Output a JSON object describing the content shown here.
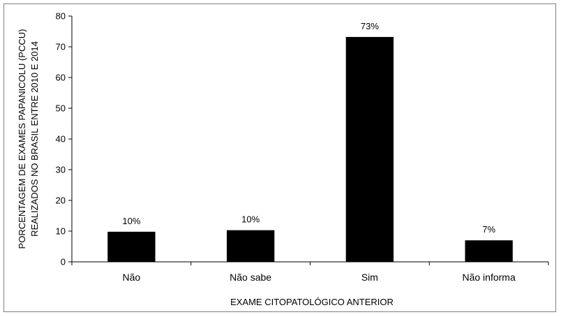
{
  "chart_data": {
    "type": "bar",
    "title": "",
    "xlabel": "EXAME CITOPATOLÓGICO ANTERIOR",
    "ylabel_lines": [
      "PORCENTAGEM DE EXAMES PAPANICOLU (PCCU)",
      "REALIZADOS NO BRASIL ENTRE 2010 E 2014"
    ],
    "categories": [
      "Não",
      "Não sabe",
      "Sim",
      "Não informa"
    ],
    "values": [
      9.8,
      10.3,
      73.2,
      7.0
    ],
    "data_labels": [
      "10%",
      "10%",
      "73%",
      "7%"
    ],
    "ylim": [
      0,
      80
    ],
    "yticks": [
      0,
      10,
      20,
      30,
      40,
      50,
      60,
      70,
      80
    ],
    "grid": false,
    "legend": "none",
    "bar_color": "#000000"
  }
}
